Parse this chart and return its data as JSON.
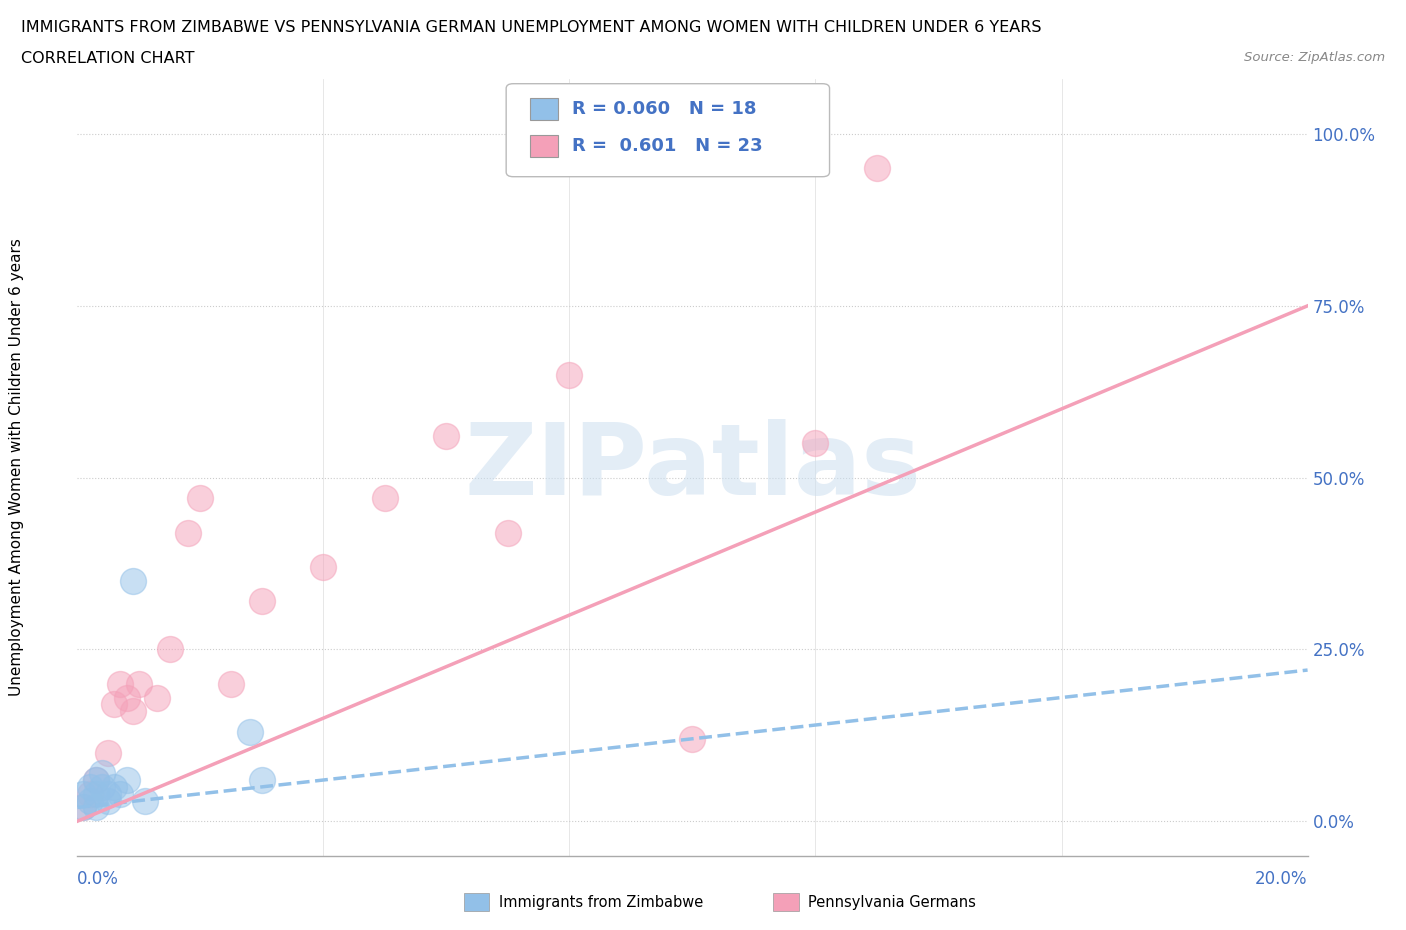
{
  "title_line1": "IMMIGRANTS FROM ZIMBABWE VS PENNSYLVANIA GERMAN UNEMPLOYMENT AMONG WOMEN WITH CHILDREN UNDER 6 YEARS",
  "title_line2": "CORRELATION CHART",
  "source": "Source: ZipAtlas.com",
  "ylabel": "Unemployment Among Women with Children Under 6 years",
  "yticks": [
    0.0,
    0.25,
    0.5,
    0.75,
    1.0
  ],
  "ytick_labels": [
    "0.0%",
    "25.0%",
    "50.0%",
    "75.0%",
    "100.0%"
  ],
  "color_blue": "#92c0e8",
  "color_pink": "#f4a0b8",
  "color_axis_text": "#4472c4",
  "watermark": "ZIPatlas",
  "xmin": 0.0,
  "xmax": 0.2,
  "ymin": -0.05,
  "ymax": 1.08,
  "blue_x": [
    0.001,
    0.001,
    0.002,
    0.002,
    0.003,
    0.003,
    0.003,
    0.004,
    0.004,
    0.005,
    0.005,
    0.006,
    0.007,
    0.008,
    0.009,
    0.011,
    0.028,
    0.03
  ],
  "blue_y": [
    0.04,
    0.02,
    0.05,
    0.03,
    0.04,
    0.06,
    0.02,
    0.05,
    0.07,
    0.03,
    0.04,
    0.05,
    0.04,
    0.06,
    0.35,
    0.03,
    0.13,
    0.06
  ],
  "pink_x": [
    0.001,
    0.002,
    0.003,
    0.005,
    0.006,
    0.007,
    0.008,
    0.009,
    0.01,
    0.013,
    0.015,
    0.018,
    0.02,
    0.025,
    0.03,
    0.04,
    0.05,
    0.06,
    0.07,
    0.08,
    0.1,
    0.12,
    0.13
  ],
  "pink_y": [
    0.02,
    0.04,
    0.06,
    0.1,
    0.17,
    0.2,
    0.18,
    0.16,
    0.2,
    0.18,
    0.25,
    0.42,
    0.47,
    0.2,
    0.32,
    0.37,
    0.47,
    0.56,
    0.42,
    0.65,
    0.12,
    0.55,
    0.95
  ],
  "blue_line_x": [
    0.0,
    0.2
  ],
  "blue_line_y": [
    0.02,
    0.22
  ],
  "pink_line_x": [
    0.0,
    0.2
  ],
  "pink_line_y": [
    0.0,
    0.75
  ],
  "legend_text1": "R = 0.060   N = 18",
  "legend_text2": "R =  0.601   N = 23",
  "bottom_legend1": "Immigrants from Zimbabwe",
  "bottom_legend2": "Pennsylvania Germans"
}
